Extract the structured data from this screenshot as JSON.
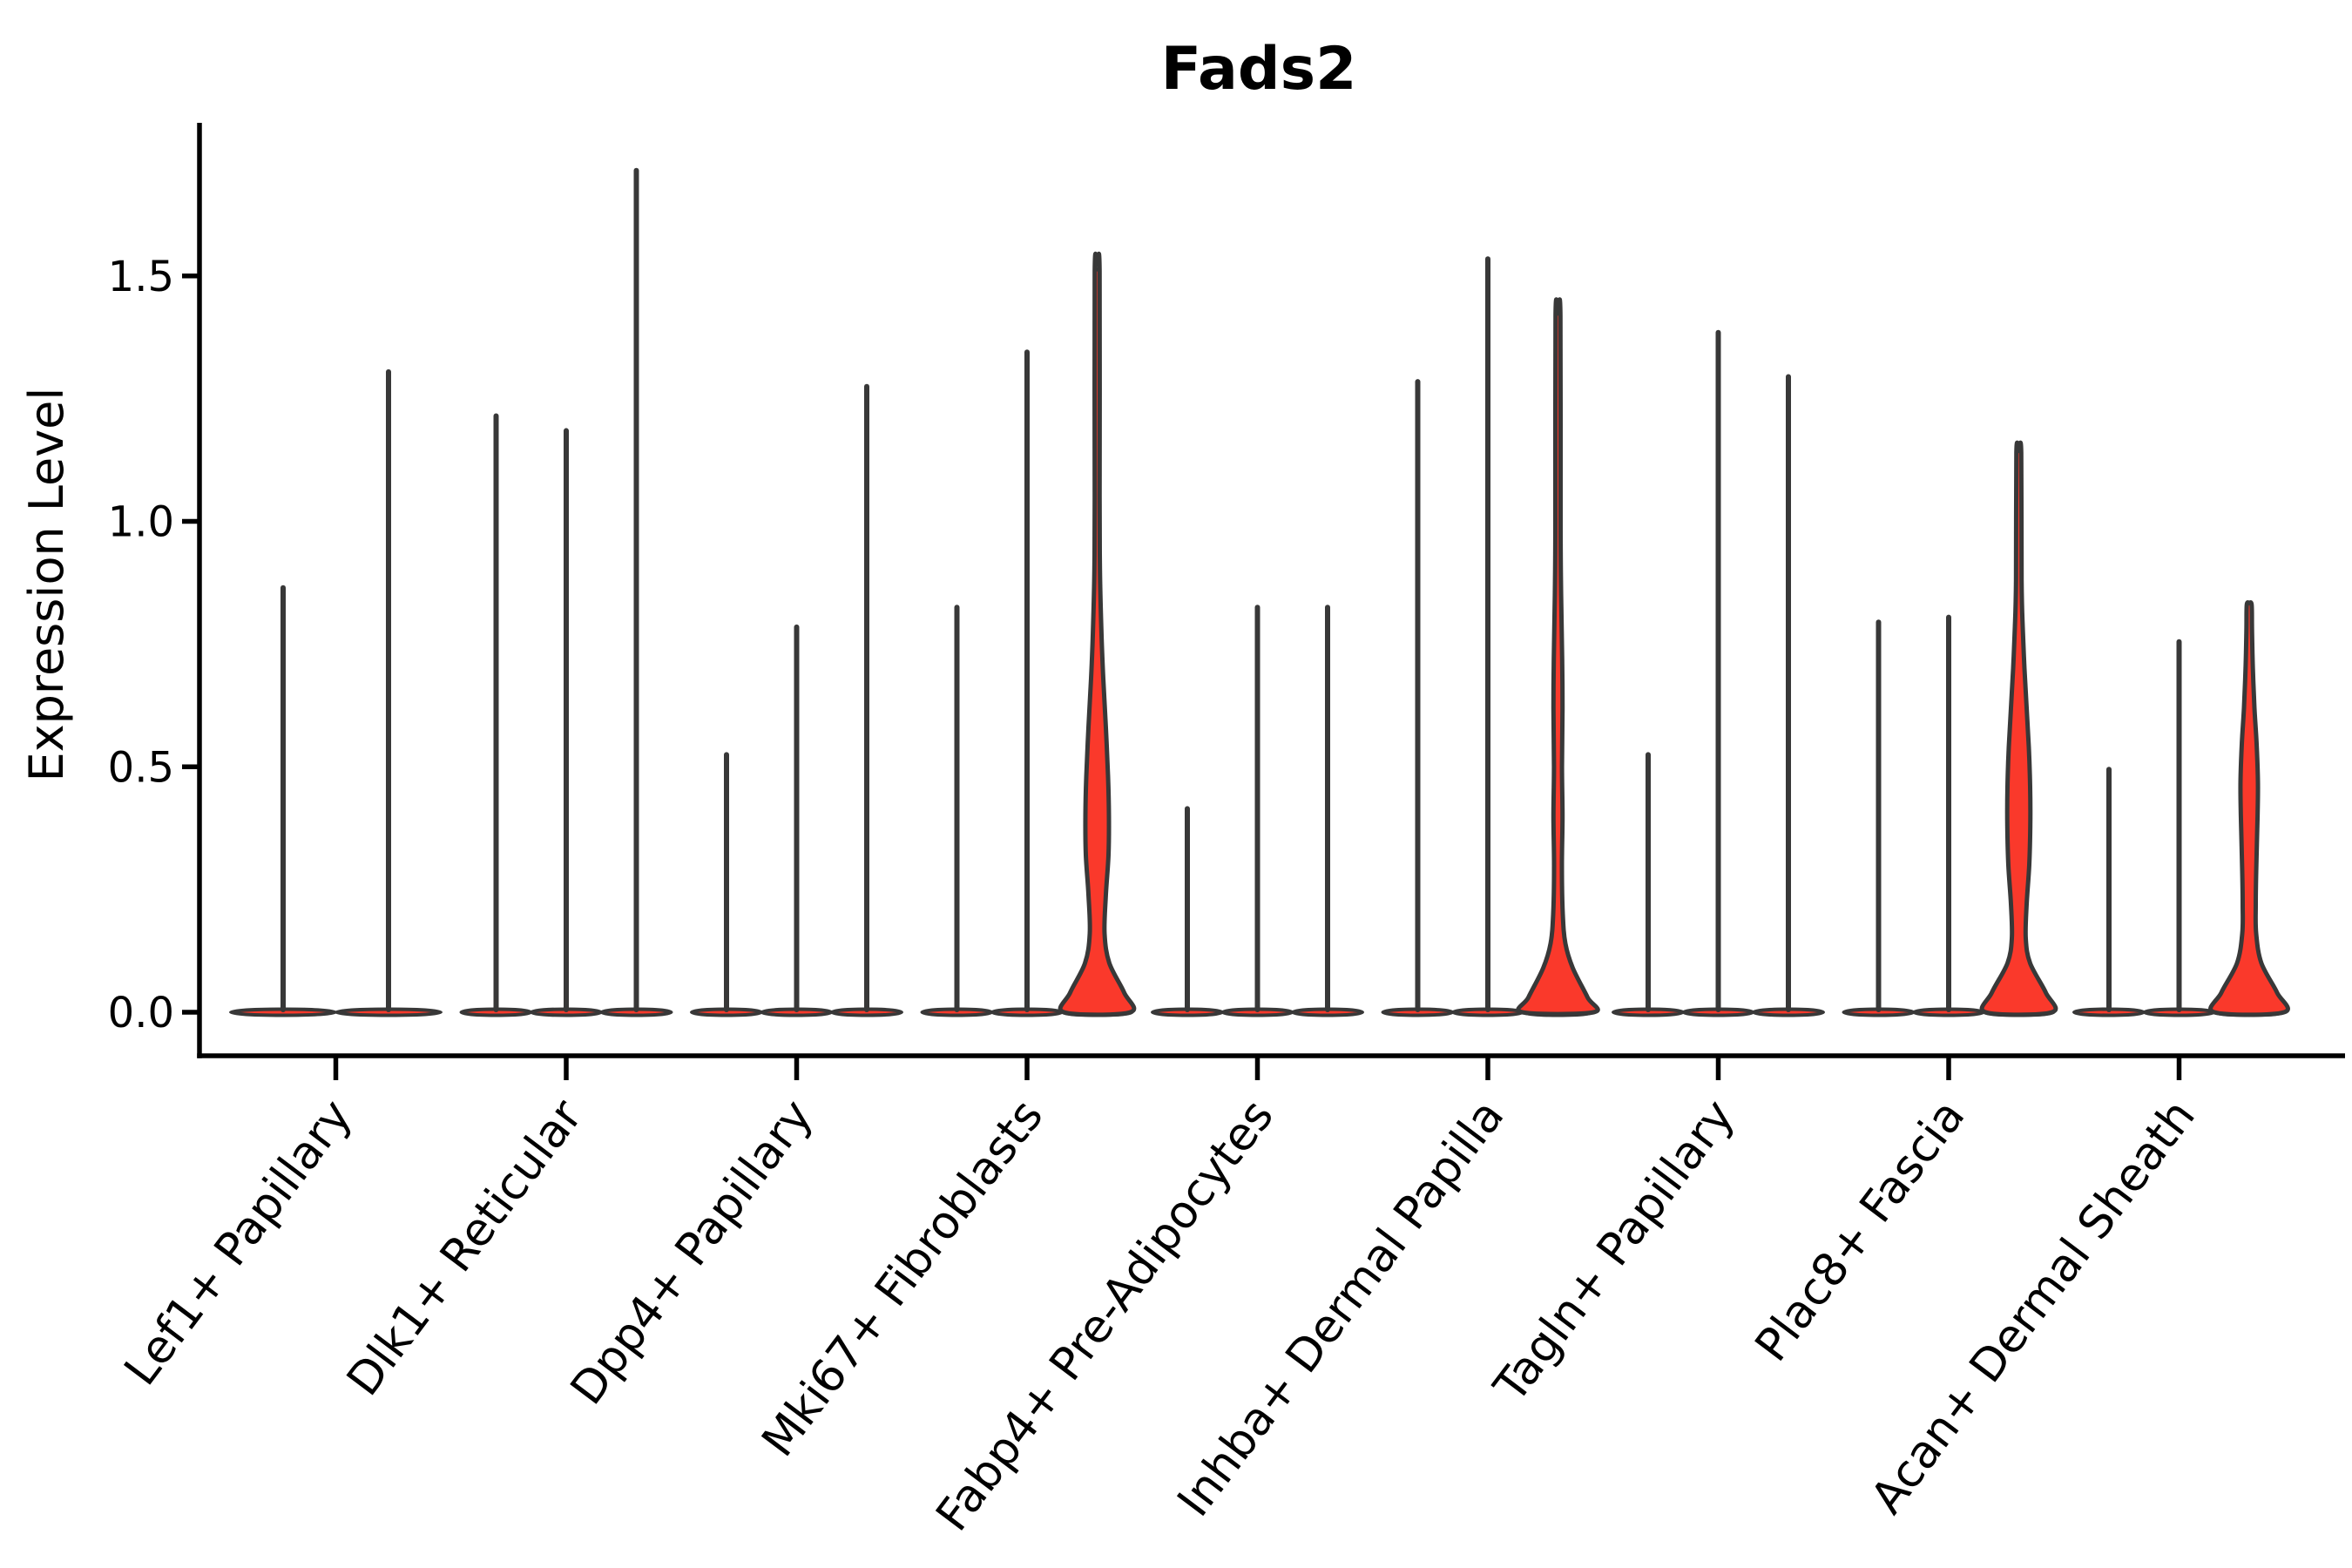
{
  "title": "Fads2",
  "chart_data": {
    "type": "violin",
    "title": "Fads2",
    "xlabel": "",
    "ylabel": "Expression Level",
    "ylim": [
      0,
      1.8
    ],
    "y_ticks": [
      0.0,
      0.5,
      1.0,
      1.5
    ],
    "y_tick_labels": [
      "0.0",
      "0.5",
      "1.0",
      "1.5"
    ],
    "grid": false,
    "legend_position": "none",
    "colors": {
      "violin_fill": "#fa392b",
      "violin_outline": "#383838",
      "spine": "#000000",
      "text": "#000000",
      "background": "#ffffff"
    },
    "categories": [
      "Lef1+ Papillary",
      "Dlk1+ Reticular",
      "Dpp4+ Papillary",
      "Mki67+ Fibroblasts",
      "Fabp4+ Pre-Adipocytes",
      "Inhba+ Dermal Papilla",
      "Tagln+ Papillary",
      "Plac8+ Fascia",
      "Acan+ Dermal Sheath"
    ],
    "groups": [
      {
        "label": "Lef1+ Papillary",
        "violins": [
          {
            "max": 0.87,
            "highlight": false
          },
          {
            "max": 1.31,
            "highlight": false
          }
        ]
      },
      {
        "label": "Dlk1+ Reticular",
        "violins": [
          {
            "max": 1.22,
            "highlight": false
          },
          {
            "max": 1.19,
            "highlight": false
          },
          {
            "max": 1.72,
            "highlight": false
          }
        ]
      },
      {
        "label": "Dpp4+ Papillary",
        "violins": [
          {
            "max": 0.53,
            "highlight": false
          },
          {
            "max": 0.79,
            "highlight": false
          },
          {
            "max": 1.28,
            "highlight": false
          }
        ]
      },
      {
        "label": "Mki67+ Fibroblasts",
        "violins": [
          {
            "max": 0.83,
            "highlight": false
          },
          {
            "max": 1.35,
            "highlight": false
          },
          {
            "max": 1.51,
            "highlight": true,
            "profile": [
              [
                0,
                38
              ],
              [
                0.04,
                31
              ],
              [
                0.1,
                14
              ],
              [
                0.16,
                8.5
              ],
              [
                0.24,
                10
              ],
              [
                0.32,
                13
              ],
              [
                0.4,
                13.5
              ],
              [
                0.48,
                12.5
              ],
              [
                0.58,
                10
              ],
              [
                0.68,
                7
              ],
              [
                0.78,
                4.8
              ],
              [
                0.9,
                3.2
              ],
              [
                1.05,
                2.8
              ],
              [
                1.51,
                2.8
              ]
            ]
          }
        ]
      },
      {
        "label": "Fabp4+ Pre-Adipocytes",
        "violins": [
          {
            "max": 0.42,
            "highlight": false
          },
          {
            "max": 0.83,
            "highlight": false
          },
          {
            "max": 0.83,
            "highlight": false
          }
        ]
      },
      {
        "label": "Inhba+ Dermal Papilla",
        "violins": [
          {
            "max": 1.29,
            "highlight": false
          },
          {
            "max": 1.54,
            "highlight": false
          },
          {
            "max": 1.42,
            "highlight": true,
            "profile": [
              [
                0,
                41
              ],
              [
                0.03,
                34
              ],
              [
                0.09,
                17
              ],
              [
                0.14,
                8.5
              ],
              [
                0.2,
                5.5
              ],
              [
                0.3,
                4.5
              ],
              [
                0.4,
                5.2
              ],
              [
                0.5,
                4.6
              ],
              [
                0.62,
                5.2
              ],
              [
                0.72,
                4.8
              ],
              [
                0.85,
                3.6
              ],
              [
                1.0,
                3.0
              ],
              [
                1.42,
                2.8
              ]
            ]
          }
        ]
      },
      {
        "label": "Tagln+ Papillary",
        "violins": [
          {
            "max": 0.53,
            "highlight": false
          },
          {
            "max": 1.39,
            "highlight": false
          },
          {
            "max": 1.3,
            "highlight": false
          }
        ]
      },
      {
        "label": "Plac8+ Fascia",
        "violins": [
          {
            "max": 0.8,
            "highlight": false
          },
          {
            "max": 0.81,
            "highlight": false
          },
          {
            "max": 1.14,
            "highlight": true,
            "profile": [
              [
                0,
                38
              ],
              [
                0.04,
                31
              ],
              [
                0.1,
                13
              ],
              [
                0.15,
                8
              ],
              [
                0.22,
                9
              ],
              [
                0.3,
                12
              ],
              [
                0.38,
                13.2
              ],
              [
                0.46,
                13
              ],
              [
                0.54,
                11.5
              ],
              [
                0.62,
                9
              ],
              [
                0.7,
                6.5
              ],
              [
                0.78,
                4.6
              ],
              [
                0.88,
                3.2
              ],
              [
                1.14,
                2.8
              ]
            ]
          }
        ]
      },
      {
        "label": "Acan+ Dermal Sheath",
        "violins": [
          {
            "max": 0.5,
            "highlight": false
          },
          {
            "max": 0.76,
            "highlight": false
          },
          {
            "max": 0.83,
            "highlight": true,
            "profile": [
              [
                0,
                40
              ],
              [
                0.04,
                32
              ],
              [
                0.1,
                14
              ],
              [
                0.16,
                8
              ],
              [
                0.22,
                7.5
              ],
              [
                0.3,
                8.2
              ],
              [
                0.4,
                9.6
              ],
              [
                0.47,
                10
              ],
              [
                0.55,
                8.4
              ],
              [
                0.62,
                6
              ],
              [
                0.7,
                4.2
              ],
              [
                0.78,
                3.2
              ],
              [
                0.83,
                2.8
              ]
            ]
          }
        ]
      }
    ]
  }
}
